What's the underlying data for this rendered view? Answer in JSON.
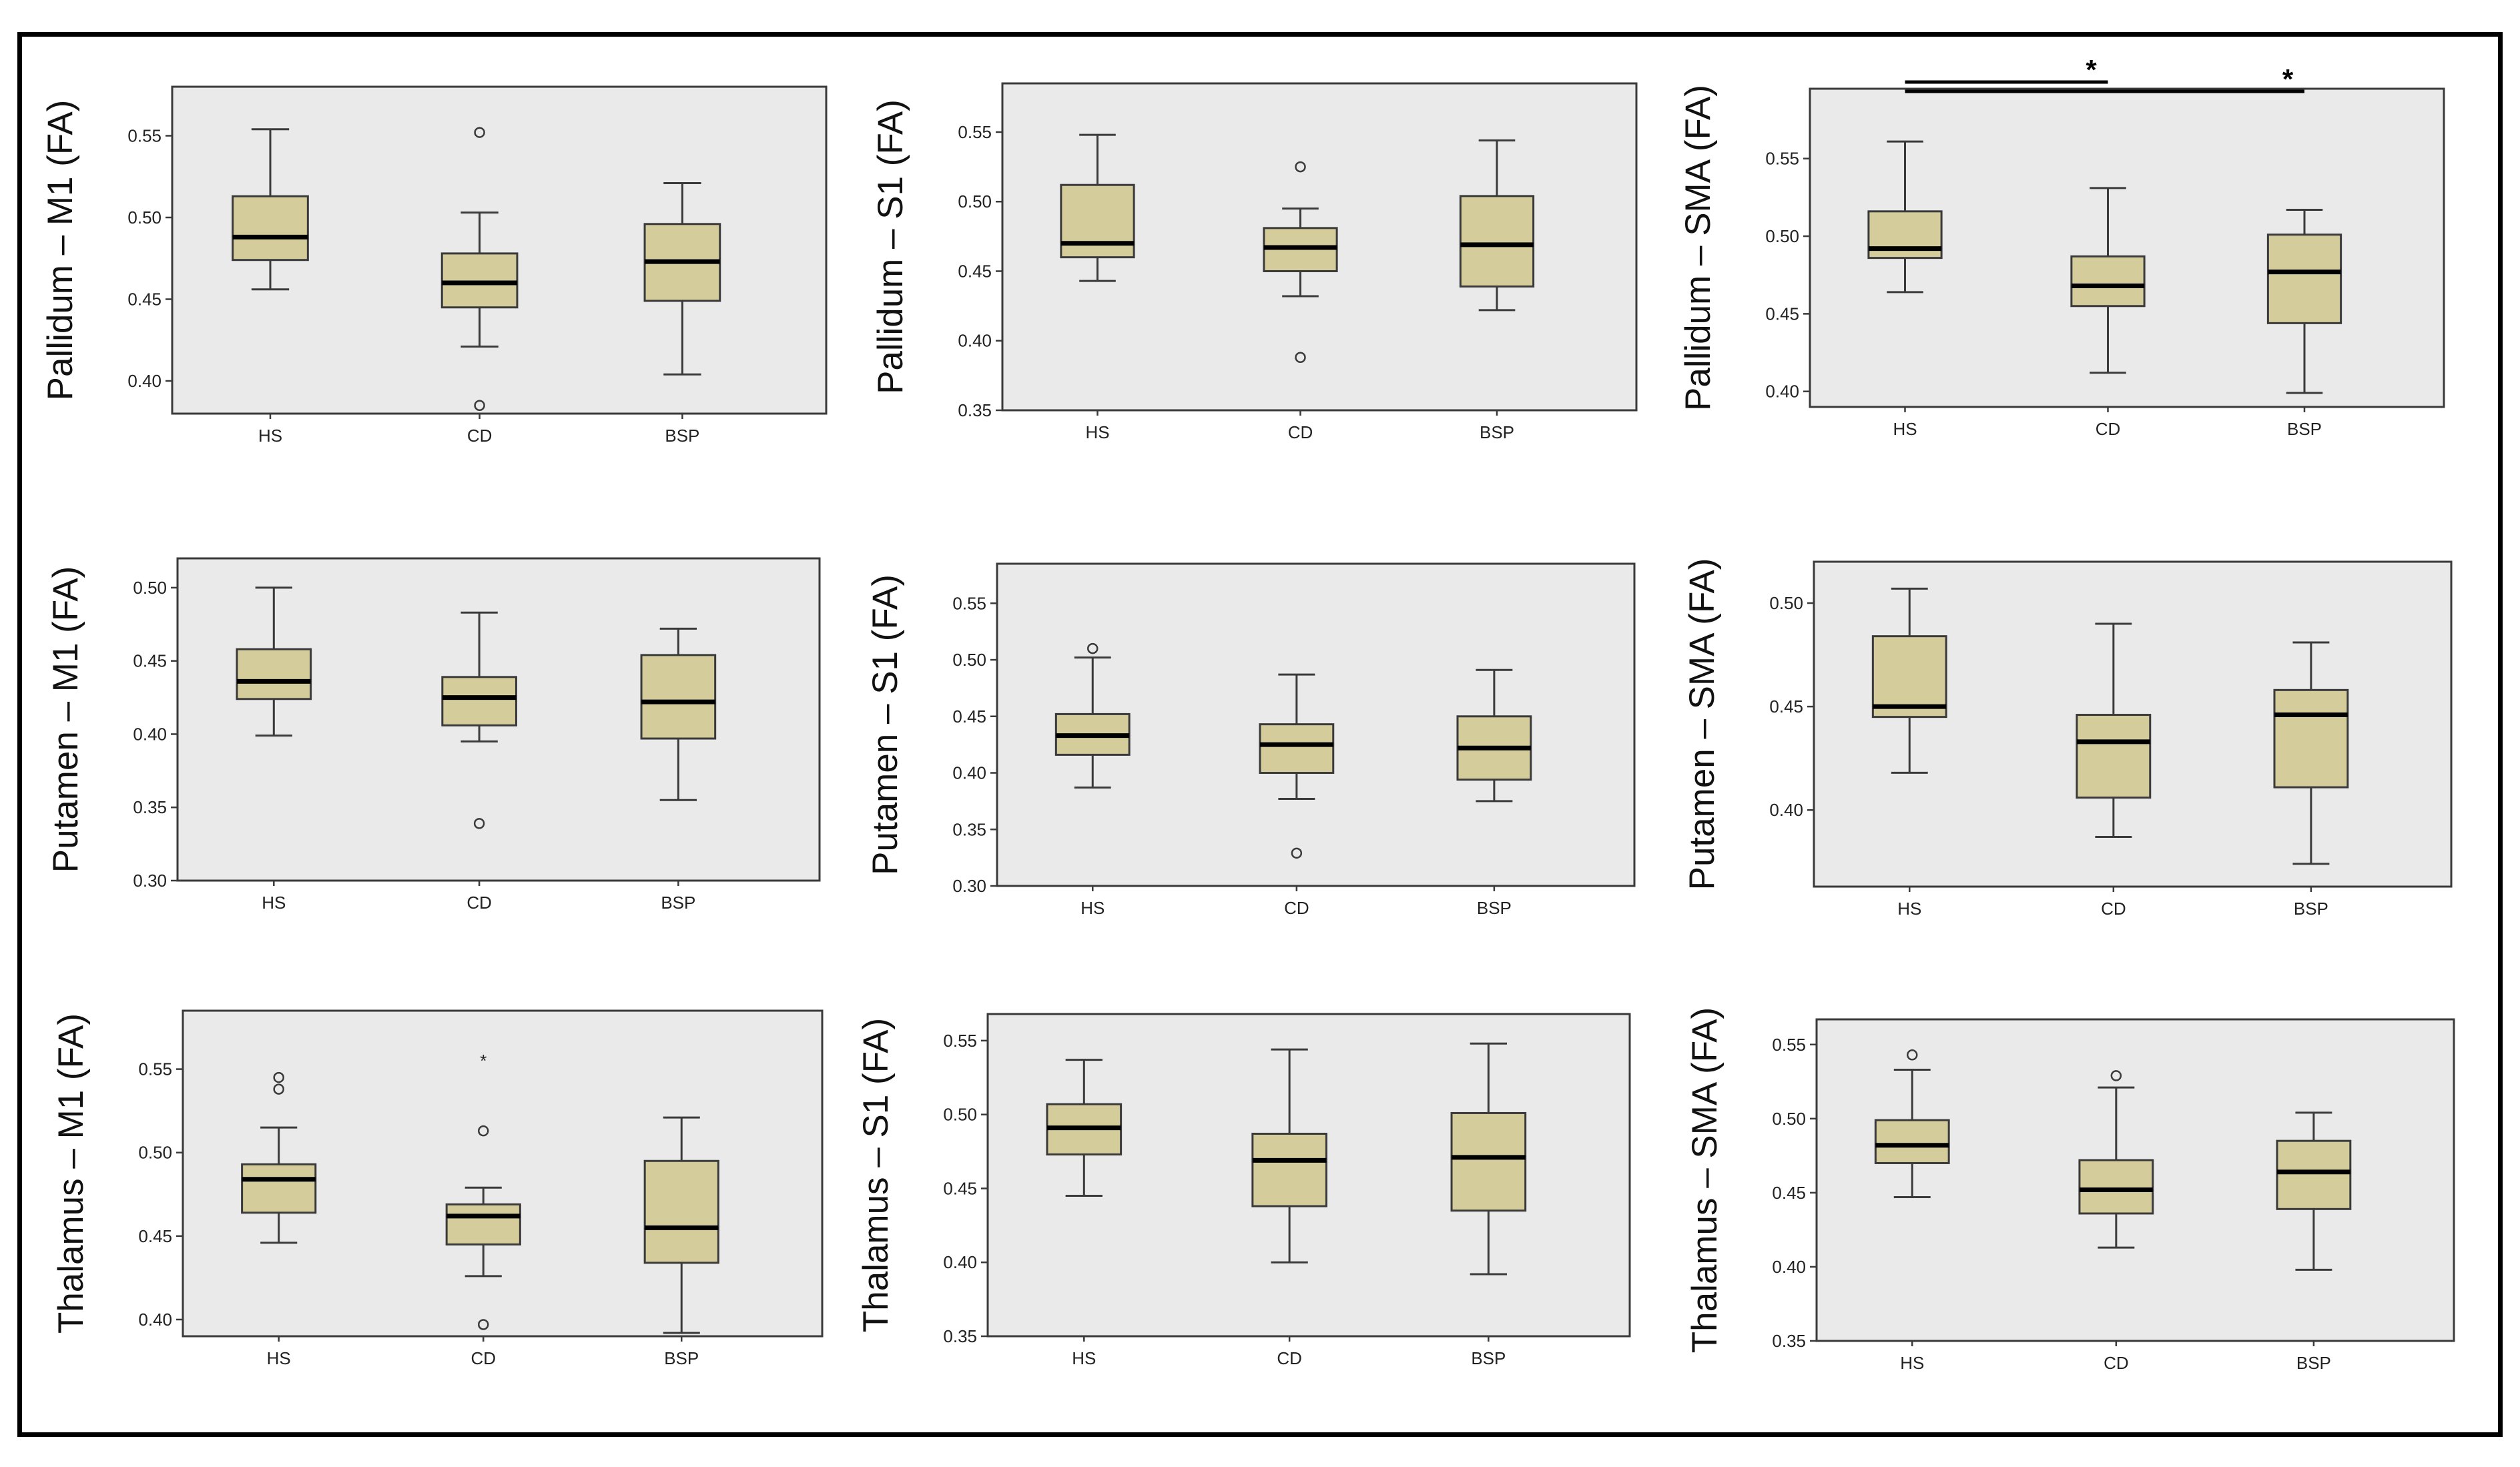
{
  "figure": {
    "panel_bg": "#eaeaea",
    "box_fill": "#d5cc9c",
    "stroke": "#3a3a3a"
  },
  "chart_data": [
    {
      "id": "pallidum-m1",
      "type": "box",
      "ylabel": "Pallidum – M1 (FA)",
      "categories": [
        "HS",
        "CD",
        "BSP"
      ],
      "ylim": [
        0.38,
        0.58
      ],
      "yticks": [
        0.4,
        0.45,
        0.5,
        0.55
      ],
      "boxes": [
        {
          "group": "HS",
          "whisker_low": 0.456,
          "q1": 0.474,
          "median": 0.488,
          "q3": 0.513,
          "whisker_high": 0.554,
          "outliers": []
        },
        {
          "group": "CD",
          "whisker_low": 0.421,
          "q1": 0.445,
          "median": 0.46,
          "q3": 0.478,
          "whisker_high": 0.503,
          "outliers": [
            0.552,
            0.385
          ]
        },
        {
          "group": "BSP",
          "whisker_low": 0.404,
          "q1": 0.449,
          "median": 0.473,
          "q3": 0.496,
          "whisker_high": 0.521,
          "outliers": []
        }
      ],
      "significance": []
    },
    {
      "id": "pallidum-s1",
      "type": "box",
      "ylabel": "Pallidum – S1 (FA)",
      "categories": [
        "HS",
        "CD",
        "BSP"
      ],
      "ylim": [
        0.35,
        0.585
      ],
      "yticks": [
        0.35,
        0.4,
        0.45,
        0.5,
        0.55
      ],
      "boxes": [
        {
          "group": "HS",
          "whisker_low": 0.443,
          "q1": 0.46,
          "median": 0.47,
          "q3": 0.512,
          "whisker_high": 0.548,
          "outliers": []
        },
        {
          "group": "CD",
          "whisker_low": 0.432,
          "q1": 0.45,
          "median": 0.467,
          "q3": 0.481,
          "whisker_high": 0.495,
          "outliers": [
            0.525,
            0.388
          ]
        },
        {
          "group": "BSP",
          "whisker_low": 0.422,
          "q1": 0.439,
          "median": 0.469,
          "q3": 0.504,
          "whisker_high": 0.544,
          "outliers": []
        }
      ],
      "significance": []
    },
    {
      "id": "pallidum-sma",
      "type": "box",
      "ylabel": "Pallidum – SMA (FA)",
      "categories": [
        "HS",
        "CD",
        "BSP"
      ],
      "ylim": [
        0.39,
        0.595
      ],
      "yticks": [
        0.4,
        0.45,
        0.5,
        0.55
      ],
      "boxes": [
        {
          "group": "HS",
          "whisker_low": 0.464,
          "q1": 0.486,
          "median": 0.492,
          "q3": 0.516,
          "whisker_high": 0.561,
          "outliers": []
        },
        {
          "group": "CD",
          "whisker_low": 0.412,
          "q1": 0.455,
          "median": 0.468,
          "q3": 0.487,
          "whisker_high": 0.531,
          "outliers": []
        },
        {
          "group": "BSP",
          "whisker_low": 0.399,
          "q1": 0.444,
          "median": 0.477,
          "q3": 0.501,
          "whisker_high": 0.517,
          "outliers": []
        }
      ],
      "significance": [
        {
          "from": "HS",
          "to": "CD",
          "label": "*"
        },
        {
          "from": "HS",
          "to": "BSP",
          "label": "*"
        }
      ]
    },
    {
      "id": "putamen-m1",
      "type": "box",
      "ylabel": "Putamen – M1 (FA)",
      "categories": [
        "HS",
        "CD",
        "BSP"
      ],
      "ylim": [
        0.3,
        0.52
      ],
      "yticks": [
        0.3,
        0.35,
        0.4,
        0.45,
        0.5
      ],
      "boxes": [
        {
          "group": "HS",
          "whisker_low": 0.399,
          "q1": 0.424,
          "median": 0.436,
          "q3": 0.458,
          "whisker_high": 0.5,
          "outliers": []
        },
        {
          "group": "CD",
          "whisker_low": 0.395,
          "q1": 0.406,
          "median": 0.425,
          "q3": 0.439,
          "whisker_high": 0.483,
          "outliers": [
            0.339
          ]
        },
        {
          "group": "BSP",
          "whisker_low": 0.355,
          "q1": 0.397,
          "median": 0.422,
          "q3": 0.454,
          "whisker_high": 0.472,
          "outliers": []
        }
      ],
      "significance": []
    },
    {
      "id": "putamen-s1",
      "type": "box",
      "ylabel": "Putamen – S1 (FA)",
      "categories": [
        "HS",
        "CD",
        "BSP"
      ],
      "ylim": [
        0.3,
        0.585
      ],
      "yticks": [
        0.3,
        0.35,
        0.4,
        0.45,
        0.5,
        0.55
      ],
      "boxes": [
        {
          "group": "HS",
          "whisker_low": 0.387,
          "q1": 0.416,
          "median": 0.433,
          "q3": 0.452,
          "whisker_high": 0.502,
          "outliers": [
            0.51
          ]
        },
        {
          "group": "CD",
          "whisker_low": 0.377,
          "q1": 0.4,
          "median": 0.425,
          "q3": 0.443,
          "whisker_high": 0.487,
          "outliers": [
            0.329
          ]
        },
        {
          "group": "BSP",
          "whisker_low": 0.375,
          "q1": 0.394,
          "median": 0.422,
          "q3": 0.45,
          "whisker_high": 0.491,
          "outliers": []
        }
      ],
      "significance": []
    },
    {
      "id": "putamen-sma",
      "type": "box",
      "ylabel": "Putamen – SMA (FA)",
      "categories": [
        "HS",
        "CD",
        "BSP"
      ],
      "ylim": [
        0.363,
        0.52
      ],
      "yticks": [
        0.4,
        0.45,
        0.5
      ],
      "boxes": [
        {
          "group": "HS",
          "whisker_low": 0.418,
          "q1": 0.445,
          "median": 0.45,
          "q3": 0.484,
          "whisker_high": 0.507,
          "outliers": []
        },
        {
          "group": "CD",
          "whisker_low": 0.387,
          "q1": 0.406,
          "median": 0.433,
          "q3": 0.446,
          "whisker_high": 0.49,
          "outliers": []
        },
        {
          "group": "BSP",
          "whisker_low": 0.374,
          "q1": 0.411,
          "median": 0.446,
          "q3": 0.458,
          "whisker_high": 0.481,
          "outliers": []
        }
      ],
      "significance": []
    },
    {
      "id": "thalamus-m1",
      "type": "box",
      "ylabel": "Thalamus – M1 (FA)",
      "categories": [
        "HS",
        "CD",
        "BSP"
      ],
      "ylim": [
        0.39,
        0.585
      ],
      "yticks": [
        0.4,
        0.45,
        0.5,
        0.55
      ],
      "boxes": [
        {
          "group": "HS",
          "whisker_low": 0.446,
          "q1": 0.464,
          "median": 0.484,
          "q3": 0.493,
          "whisker_high": 0.515,
          "outliers": [
            0.545,
            0.538
          ]
        },
        {
          "group": "CD",
          "whisker_low": 0.426,
          "q1": 0.445,
          "median": 0.462,
          "q3": 0.469,
          "whisker_high": 0.479,
          "outliers": [
            0.513,
            0.397
          ]
        },
        {
          "group": "BSP",
          "whisker_low": 0.392,
          "q1": 0.434,
          "median": 0.455,
          "q3": 0.495,
          "whisker_high": 0.521,
          "outliers": []
        }
      ],
      "extremes": [
        {
          "group": "CD",
          "value": 0.557,
          "label": "*"
        }
      ],
      "significance": []
    },
    {
      "id": "thalamus-s1",
      "type": "box",
      "ylabel": "Thalamus – S1 (FA)",
      "categories": [
        "HS",
        "CD",
        "BSP"
      ],
      "ylim": [
        0.35,
        0.568
      ],
      "yticks": [
        0.35,
        0.4,
        0.45,
        0.5,
        0.55
      ],
      "boxes": [
        {
          "group": "HS",
          "whisker_low": 0.445,
          "q1": 0.473,
          "median": 0.491,
          "q3": 0.507,
          "whisker_high": 0.537,
          "outliers": []
        },
        {
          "group": "CD",
          "whisker_low": 0.4,
          "q1": 0.438,
          "median": 0.469,
          "q3": 0.487,
          "whisker_high": 0.544,
          "outliers": []
        },
        {
          "group": "BSP",
          "whisker_low": 0.392,
          "q1": 0.435,
          "median": 0.471,
          "q3": 0.501,
          "whisker_high": 0.548,
          "outliers": []
        }
      ],
      "significance": []
    },
    {
      "id": "thalamus-sma",
      "type": "box",
      "ylabel": "Thalamus – SMA (FA)",
      "categories": [
        "HS",
        "CD",
        "BSP"
      ],
      "ylim": [
        0.35,
        0.567
      ],
      "yticks": [
        0.35,
        0.4,
        0.45,
        0.5,
        0.55
      ],
      "boxes": [
        {
          "group": "HS",
          "whisker_low": 0.447,
          "q1": 0.47,
          "median": 0.482,
          "q3": 0.499,
          "whisker_high": 0.533,
          "outliers": [
            0.543
          ]
        },
        {
          "group": "CD",
          "whisker_low": 0.413,
          "q1": 0.436,
          "median": 0.452,
          "q3": 0.472,
          "whisker_high": 0.521,
          "outliers": [
            0.529
          ]
        },
        {
          "group": "BSP",
          "whisker_low": 0.398,
          "q1": 0.439,
          "median": 0.464,
          "q3": 0.485,
          "whisker_high": 0.504,
          "outliers": []
        }
      ],
      "significance": []
    }
  ]
}
